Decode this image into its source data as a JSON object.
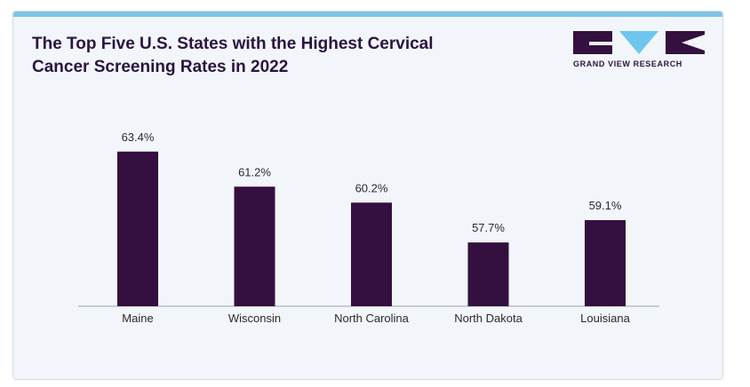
{
  "header": {
    "title": "The Top Five U.S. States with the Highest Cervical Cancer Screening Rates in 2022"
  },
  "logo": {
    "text": "GRAND VIEW RESEARCH",
    "color": "#33103f",
    "accent": "#6ec6ee"
  },
  "chart_data": {
    "type": "bar",
    "title": "The Top Five U.S. States with the Highest Cervical Cancer Screening Rates in 2022",
    "categories": [
      "Maine",
      "Wisconsin",
      "North Carolina",
      "North Dakota",
      "Louisiana"
    ],
    "values": [
      63.4,
      61.2,
      60.2,
      57.7,
      59.1
    ],
    "value_labels": [
      "63.4%",
      "61.2%",
      "60.2%",
      "57.7%",
      "59.1%"
    ],
    "unit": "%",
    "ylim": [
      53.7,
      64.0
    ],
    "grid": false,
    "legend": "none",
    "bar_color": "#33103f"
  }
}
